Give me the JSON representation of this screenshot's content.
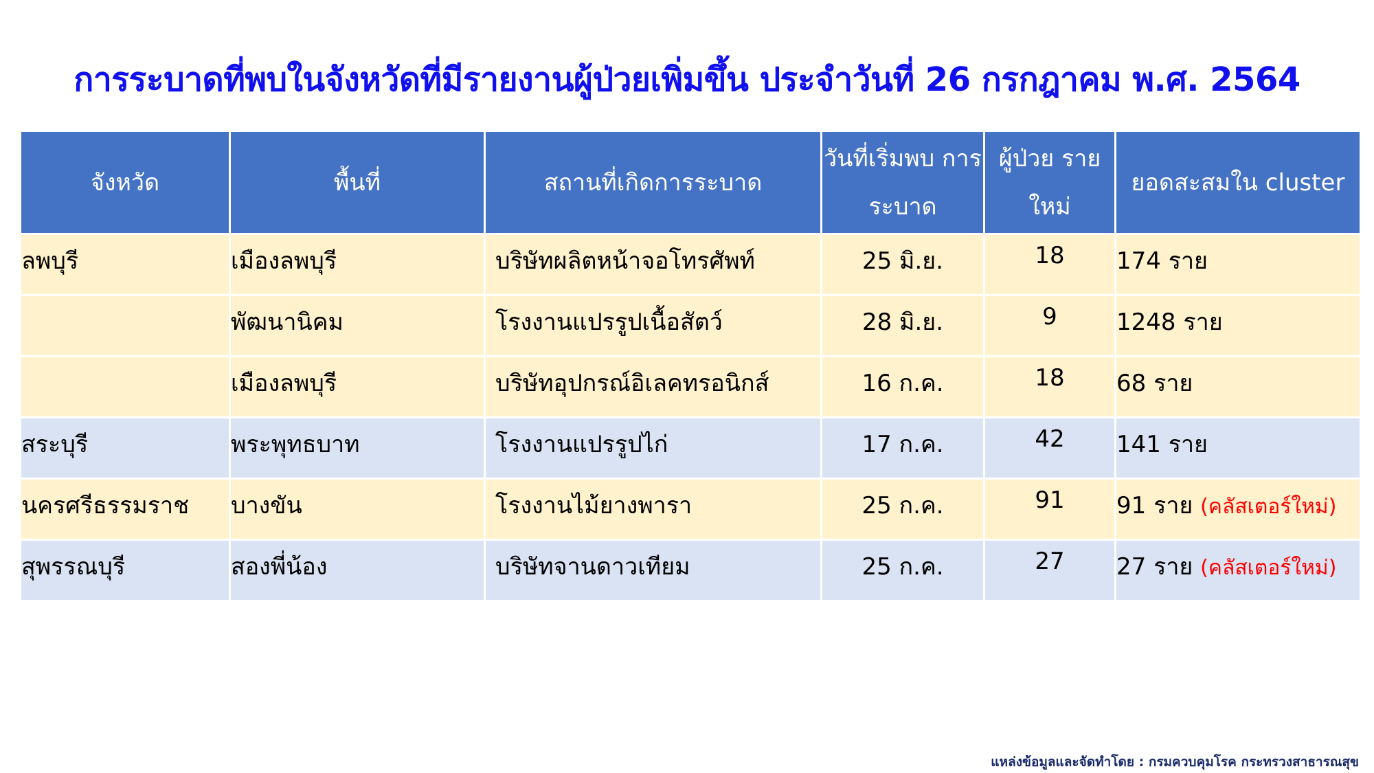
{
  "title": "การระบาดที่พบในจังหวัดที่มีรายงานผู้ป่วยเพิ่มขึ้น ประจำวันที่ 26 กรกฎาคม พ.ศ. 2564",
  "headers": [
    "จังหวัด",
    "พื้นที่",
    "สถานที่เกิดการระบาด",
    "วันที่เริ่มพบ การระบาด",
    "ผู้ป่วย รายใหม่",
    "ยอดสะสมใน cluster"
  ],
  "rows": [
    {
      "province": "ลพบุรี",
      "area": "เมืองลพบุรี",
      "place": "บริษัทผลิตหน้าจอโทรศัพท์",
      "date": "25 มิ.ย.",
      "new": "18",
      "total": "174 ราย",
      "note": ""
    },
    {
      "province": "",
      "area": "พัฒนานิคม",
      "place": "โรงงานแปรรูปเนื้อสัตว์",
      "date": "28 มิ.ย.",
      "new": "9",
      "total": "1248 ราย",
      "note": ""
    },
    {
      "province": "",
      "area": "เมืองลพบุรี",
      "place": "บริษัทอุปกรณ์อิเลคทรอนิกส์",
      "date": "16 ก.ค.",
      "new": "18",
      "total": "68 ราย",
      "note": ""
    },
    {
      "province": "สระบุรี",
      "area": "พระพุทธบาท",
      "place": "โรงงานแปรรูปไก่",
      "date": "17 ก.ค.",
      "new": "42",
      "total": "141 ราย",
      "note": ""
    },
    {
      "province": "นครศรีธรรมราช",
      "area": "บางขัน",
      "place": "โรงงานไม้ยางพารา",
      "date": "25 ก.ค.",
      "new": "91",
      "total": "91 ราย",
      "note": "(คลัสเตอร์ใหม่)"
    },
    {
      "province": "สุพรรณบุรี",
      "area": "สองพี่น้อง",
      "place": "บริษัทจานดาวเทียม",
      "date": "25 ก.ค.",
      "new": "27",
      "total": "27 ราย",
      "note": "(คลัสเตอร์ใหม่)"
    }
  ],
  "row_colors": [
    "y",
    "y",
    "y",
    "b",
    "y",
    "b"
  ],
  "colors": {
    "header": "#4472C4",
    "row_yellow": "#FFF2CC",
    "row_blue": "#DAE3F3",
    "title": "#1010EE",
    "new_cluster": "#FF0000"
  },
  "footer": "แหล่งข้อมูลและจัดทำโดย : กรมควบคุมโรค กระทรวงสาธารณสุข"
}
